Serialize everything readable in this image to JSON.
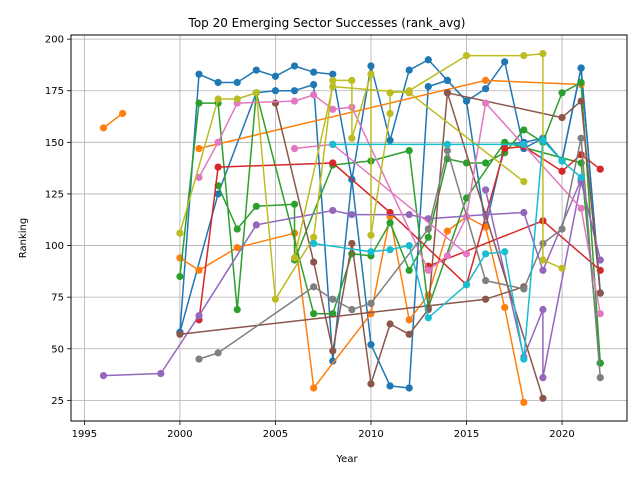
{
  "chart_data": {
    "type": "line",
    "title": "Top 20 Emerging Sector Successes (rank_avg)",
    "xlabel": "Year",
    "ylabel": "Ranking",
    "xlim": [
      1994.3,
      2023.4
    ],
    "ylim": [
      15.0,
      202.0
    ],
    "x_ticks": [
      1995,
      2000,
      2005,
      2010,
      2015,
      2020
    ],
    "y_ticks": [
      25,
      50,
      75,
      100,
      125,
      150,
      175,
      200
    ],
    "grid": true,
    "legend": "none",
    "series": [
      {
        "color": "#1f77b4",
        "points": [
          [
            2000,
            58
          ],
          [
            2001,
            183
          ],
          [
            2002,
            179
          ],
          [
            2003,
            179
          ],
          [
            2004,
            185
          ],
          [
            2005,
            182
          ],
          [
            2006,
            187
          ],
          [
            2007,
            184
          ],
          [
            2008,
            183
          ],
          [
            2009,
            132
          ],
          [
            2010,
            187
          ],
          [
            2011,
            151
          ],
          [
            2012,
            185
          ],
          [
            2013,
            190
          ],
          [
            2014,
            180
          ],
          [
            2015,
            170
          ],
          [
            2016,
            176
          ],
          [
            2017,
            189
          ],
          [
            2018,
            147
          ],
          [
            2019,
            152
          ],
          [
            2020,
            141
          ],
          [
            2021,
            186
          ],
          [
            2022,
            77
          ]
        ]
      },
      {
        "color": "#1f77b4",
        "points": [
          [
            2000,
            58
          ],
          [
            2002,
            125
          ],
          [
            2004,
            174
          ],
          [
            2005,
            175
          ],
          [
            2006,
            175
          ],
          [
            2007,
            178
          ],
          [
            2008,
            44
          ],
          [
            2009,
            132
          ],
          [
            2010,
            52
          ],
          [
            2011,
            32
          ],
          [
            2012,
            31
          ],
          [
            2013,
            177
          ],
          [
            2014,
            180
          ],
          [
            2015,
            170
          ],
          [
            2016,
            109
          ],
          [
            2017,
            149
          ],
          [
            2018,
            150
          ],
          [
            2019,
            152
          ],
          [
            2020,
            141
          ],
          [
            2021,
            186
          ],
          [
            2022,
            77
          ]
        ]
      },
      {
        "color": "#ff7f0e",
        "points": [
          [
            1996,
            157
          ],
          [
            1997,
            164
          ]
        ]
      },
      {
        "color": "#ff7f0e",
        "points": [
          [
            2001,
            147
          ],
          [
            2016,
            180
          ],
          [
            2021,
            178
          ]
        ]
      },
      {
        "color": "#ff7f0e",
        "points": [
          [
            2000,
            94
          ],
          [
            2001,
            88
          ],
          [
            2003,
            99
          ],
          [
            2006,
            106
          ],
          [
            2007,
            31
          ],
          [
            2010,
            67
          ],
          [
            2011,
            114
          ],
          [
            2012,
            64
          ],
          [
            2013,
            76
          ],
          [
            2014,
            107
          ],
          [
            2015,
            114
          ],
          [
            2016,
            109
          ],
          [
            2017,
            70
          ],
          [
            2018,
            24
          ]
        ]
      },
      {
        "color": "#2ca02c",
        "points": [
          [
            2000,
            85
          ],
          [
            2001,
            169
          ],
          [
            2002,
            169
          ],
          [
            2003,
            69
          ],
          [
            2004,
            174
          ],
          [
            2007,
            67
          ],
          [
            2008,
            67
          ],
          [
            2009,
            96
          ],
          [
            2010,
            95
          ],
          [
            2011,
            111
          ],
          [
            2012,
            88
          ],
          [
            2013,
            104
          ],
          [
            2014,
            142
          ],
          [
            2015,
            140
          ],
          [
            2016,
            140
          ],
          [
            2017,
            145
          ],
          [
            2018,
            156
          ],
          [
            2019,
            150
          ],
          [
            2020,
            174
          ],
          [
            2021,
            179
          ],
          [
            2022,
            43
          ]
        ]
      },
      {
        "color": "#2ca02c",
        "points": [
          [
            2002,
            129
          ],
          [
            2003,
            108
          ],
          [
            2004,
            119
          ],
          [
            2006,
            120
          ],
          [
            2006,
            93
          ],
          [
            2008,
            139
          ],
          [
            2010,
            141
          ],
          [
            2012,
            146
          ],
          [
            2013,
            70
          ],
          [
            2015,
            123
          ],
          [
            2017,
            150
          ],
          [
            2021,
            140
          ],
          [
            2022,
            43
          ]
        ]
      },
      {
        "color": "#d62728",
        "points": [
          [
            2001,
            64
          ],
          [
            2002,
            138
          ],
          [
            2008,
            140
          ],
          [
            2011,
            116
          ],
          [
            2015,
            81
          ],
          [
            2017,
            147
          ],
          [
            2018,
            148
          ],
          [
            2020,
            136
          ],
          [
            2021,
            144
          ],
          [
            2022,
            137
          ]
        ]
      },
      {
        "color": "#d62728",
        "points": [
          [
            2013,
            90
          ],
          [
            2019,
            112
          ],
          [
            2022,
            88
          ]
        ]
      },
      {
        "color": "#9467bd",
        "points": [
          [
            1996,
            37
          ],
          [
            1999,
            38
          ],
          [
            2001,
            66
          ],
          [
            2004,
            110
          ],
          [
            2008,
            117
          ],
          [
            2009,
            115
          ],
          [
            2012,
            115
          ],
          [
            2013,
            113
          ],
          [
            2016,
            115
          ],
          [
            2018,
            116
          ],
          [
            2019,
            88
          ],
          [
            2021,
            132
          ],
          [
            2022,
            93
          ]
        ]
      },
      {
        "color": "#9467bd",
        "points": [
          [
            2016,
            127
          ],
          [
            2018,
            46
          ],
          [
            2019,
            69
          ],
          [
            2019,
            36
          ],
          [
            2021,
            131
          ],
          [
            2022,
            93
          ]
        ]
      },
      {
        "color": "#8c564b",
        "points": [
          [
            2000,
            57
          ],
          [
            2016,
            74
          ],
          [
            2018,
            80
          ]
        ]
      },
      {
        "color": "#8c564b",
        "points": [
          [
            2005,
            169
          ],
          [
            2007,
            92
          ],
          [
            2008,
            49
          ],
          [
            2009,
            101
          ],
          [
            2010,
            33
          ],
          [
            2011,
            62
          ],
          [
            2012,
            57
          ],
          [
            2013,
            69
          ],
          [
            2014,
            174
          ],
          [
            2020,
            162
          ],
          [
            2021,
            170
          ],
          [
            2022,
            77
          ]
        ]
      },
      {
        "color": "#8c564b",
        "points": [
          [
            2014,
            174
          ],
          [
            2019,
            26
          ]
        ]
      },
      {
        "color": "#e377c2",
        "points": [
          [
            2001,
            133
          ],
          [
            2002,
            150
          ],
          [
            2003,
            169
          ],
          [
            2006,
            170
          ],
          [
            2007,
            173
          ],
          [
            2008,
            166
          ],
          [
            2009,
            167
          ],
          [
            2013,
            88
          ],
          [
            2014,
            95
          ],
          [
            2015,
            114
          ],
          [
            2016,
            169
          ],
          [
            2021,
            118
          ],
          [
            2022,
            67
          ]
        ]
      },
      {
        "color": "#e377c2",
        "points": [
          [
            2006,
            147
          ],
          [
            2008,
            149
          ],
          [
            2015,
            96
          ]
        ]
      },
      {
        "color": "#7f7f7f",
        "points": [
          [
            2001,
            45
          ],
          [
            2002,
            48
          ],
          [
            2007,
            80
          ],
          [
            2008,
            74
          ],
          [
            2009,
            69
          ],
          [
            2010,
            72
          ],
          [
            2013,
            108
          ],
          [
            2014,
            146
          ],
          [
            2016,
            83
          ],
          [
            2018,
            79
          ],
          [
            2019,
            101
          ],
          [
            2020,
            108
          ],
          [
            2021,
            152
          ],
          [
            2022,
            36
          ]
        ]
      },
      {
        "color": "#bcbd22",
        "points": [
          [
            2000,
            106
          ],
          [
            2002,
            171
          ],
          [
            2003,
            171
          ],
          [
            2004,
            174
          ],
          [
            2005,
            74
          ],
          [
            2007,
            104
          ],
          [
            2008,
            180
          ],
          [
            2009,
            180
          ],
          [
            2009,
            152
          ],
          [
            2010,
            183
          ],
          [
            2010,
            105
          ],
          [
            2011,
            164
          ],
          [
            2011,
            174
          ],
          [
            2012,
            175
          ],
          [
            2015,
            192
          ],
          [
            2018,
            192
          ],
          [
            2019,
            193
          ],
          [
            2019,
            93
          ],
          [
            2020,
            89
          ]
        ]
      },
      {
        "color": "#bcbd22",
        "points": [
          [
            2006,
            94
          ],
          [
            2008,
            177
          ],
          [
            2012,
            174
          ],
          [
            2018,
            131
          ]
        ]
      },
      {
        "color": "#17becf",
        "points": [
          [
            2007,
            101
          ],
          [
            2010,
            97
          ],
          [
            2011,
            98
          ],
          [
            2012,
            100
          ],
          [
            2013,
            65
          ],
          [
            2015,
            81
          ],
          [
            2016,
            96
          ],
          [
            2017,
            97
          ],
          [
            2018,
            45
          ],
          [
            2019,
            151
          ],
          [
            2020,
            141
          ],
          [
            2021,
            133
          ]
        ]
      },
      {
        "color": "#17becf",
        "points": [
          [
            2008,
            149
          ],
          [
            2014,
            149
          ],
          [
            2018,
            149
          ]
        ]
      }
    ]
  }
}
